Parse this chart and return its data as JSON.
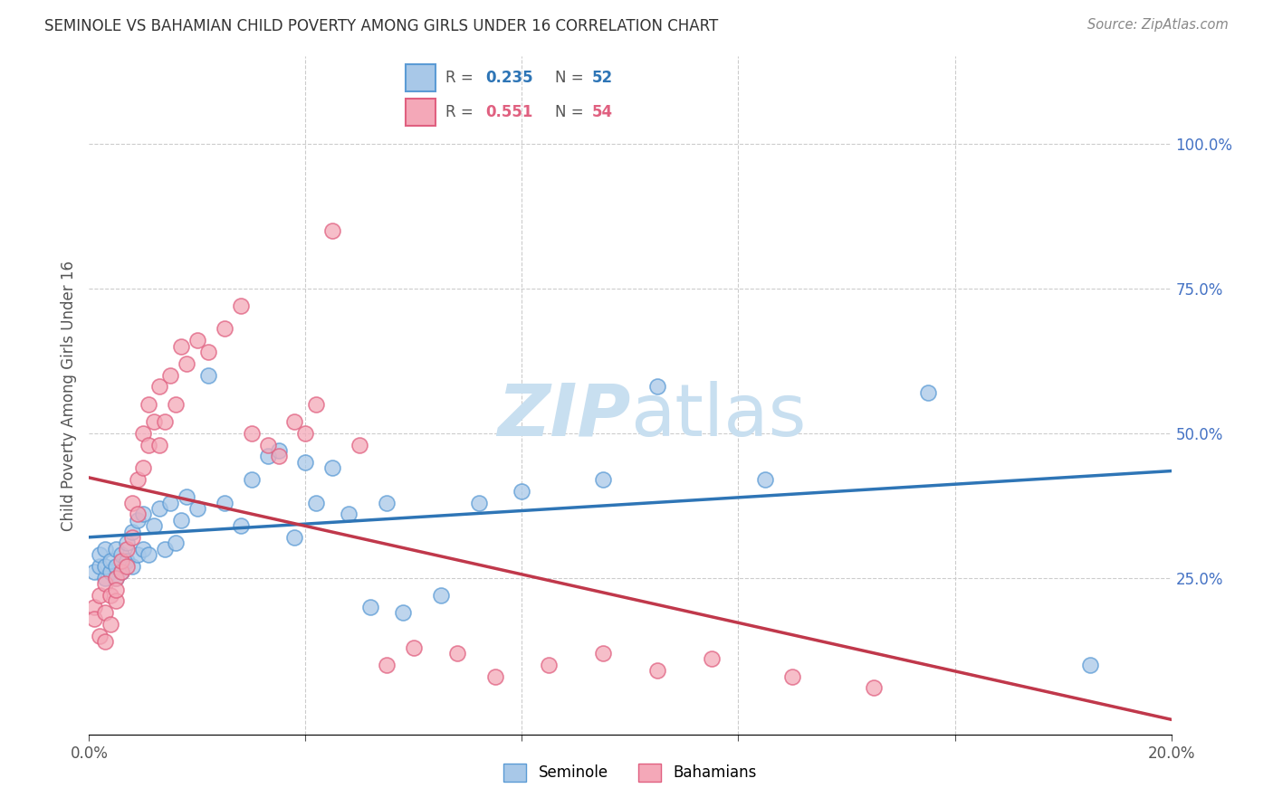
{
  "title": "SEMINOLE VS BAHAMIAN CHILD POVERTY AMONG GIRLS UNDER 16 CORRELATION CHART",
  "source": "Source: ZipAtlas.com",
  "ylabel_label": "Child Poverty Among Girls Under 16",
  "xlim": [
    0.0,
    0.2
  ],
  "ylim": [
    -0.02,
    1.15
  ],
  "blue_color": "#a8c8e8",
  "blue_edge_color": "#5b9bd5",
  "pink_color": "#f4a8b8",
  "pink_edge_color": "#e06080",
  "blue_line_color": "#2e75b6",
  "pink_line_color": "#c0384b",
  "watermark_color": "#c8dff0",
  "grid_color": "#cccccc",
  "right_tick_color": "#4472c4",
  "seminole_x": [
    0.001,
    0.002,
    0.002,
    0.003,
    0.003,
    0.003,
    0.004,
    0.004,
    0.005,
    0.005,
    0.005,
    0.006,
    0.006,
    0.007,
    0.007,
    0.008,
    0.008,
    0.009,
    0.009,
    0.01,
    0.01,
    0.011,
    0.012,
    0.013,
    0.014,
    0.015,
    0.016,
    0.017,
    0.018,
    0.02,
    0.022,
    0.025,
    0.028,
    0.03,
    0.033,
    0.035,
    0.038,
    0.04,
    0.042,
    0.045,
    0.048,
    0.052,
    0.055,
    0.058,
    0.065,
    0.072,
    0.08,
    0.095,
    0.105,
    0.125,
    0.155,
    0.185
  ],
  "seminole_y": [
    0.26,
    0.27,
    0.29,
    0.25,
    0.27,
    0.3,
    0.26,
    0.28,
    0.25,
    0.27,
    0.3,
    0.26,
    0.29,
    0.28,
    0.31,
    0.27,
    0.33,
    0.29,
    0.35,
    0.3,
    0.36,
    0.29,
    0.34,
    0.37,
    0.3,
    0.38,
    0.31,
    0.35,
    0.39,
    0.37,
    0.6,
    0.38,
    0.34,
    0.42,
    0.46,
    0.47,
    0.32,
    0.45,
    0.38,
    0.44,
    0.36,
    0.2,
    0.38,
    0.19,
    0.22,
    0.38,
    0.4,
    0.42,
    0.58,
    0.42,
    0.57,
    0.1
  ],
  "bahamian_x": [
    0.001,
    0.001,
    0.002,
    0.002,
    0.003,
    0.003,
    0.003,
    0.004,
    0.004,
    0.005,
    0.005,
    0.005,
    0.006,
    0.006,
    0.007,
    0.007,
    0.008,
    0.008,
    0.009,
    0.009,
    0.01,
    0.01,
    0.011,
    0.011,
    0.012,
    0.013,
    0.013,
    0.014,
    0.015,
    0.016,
    0.017,
    0.018,
    0.02,
    0.022,
    0.025,
    0.028,
    0.03,
    0.033,
    0.035,
    0.038,
    0.04,
    0.042,
    0.045,
    0.05,
    0.055,
    0.06,
    0.068,
    0.075,
    0.085,
    0.095,
    0.105,
    0.115,
    0.13,
    0.145
  ],
  "bahamian_y": [
    0.2,
    0.18,
    0.22,
    0.15,
    0.19,
    0.24,
    0.14,
    0.17,
    0.22,
    0.25,
    0.21,
    0.23,
    0.26,
    0.28,
    0.27,
    0.3,
    0.32,
    0.38,
    0.36,
    0.42,
    0.44,
    0.5,
    0.48,
    0.55,
    0.52,
    0.48,
    0.58,
    0.52,
    0.6,
    0.55,
    0.65,
    0.62,
    0.66,
    0.64,
    0.68,
    0.72,
    0.5,
    0.48,
    0.46,
    0.52,
    0.5,
    0.55,
    0.85,
    0.48,
    0.1,
    0.13,
    0.12,
    0.08,
    0.1,
    0.12,
    0.09,
    0.11,
    0.08,
    0.06
  ]
}
